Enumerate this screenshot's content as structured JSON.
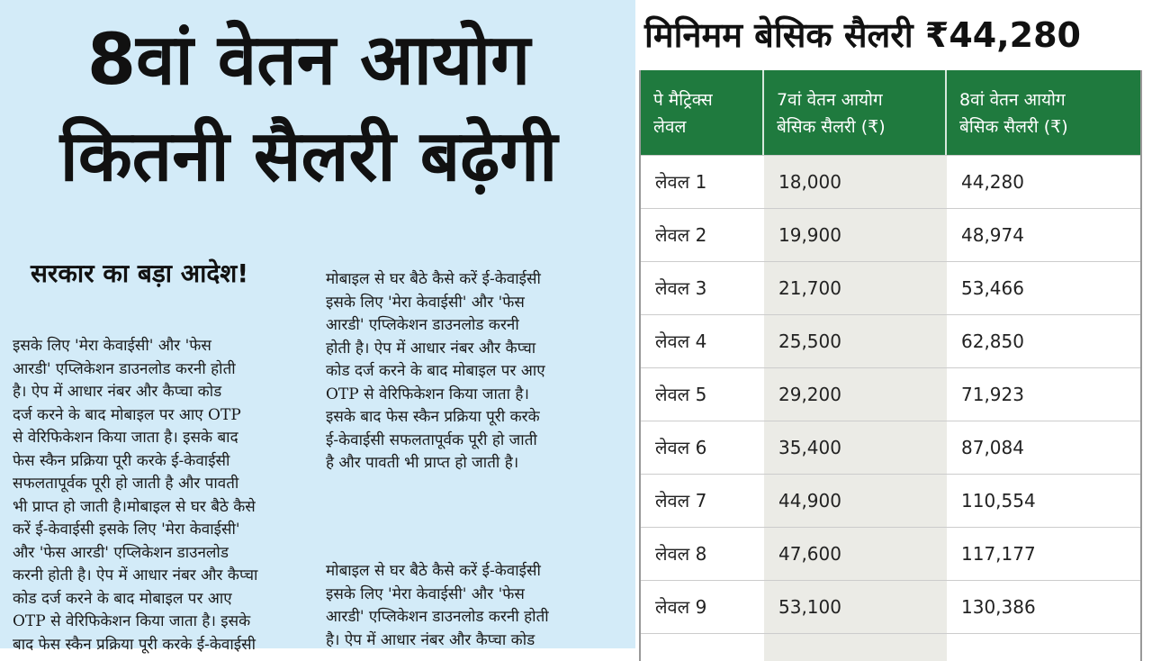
{
  "left": {
    "headline_line1": "8वां वेतन आयोग",
    "headline_line2": "कितनी सैलरी बढ़ेगी",
    "subheading": "सरकार का बड़ा आदेश!",
    "column1_lines": [
      "इसके लिए 'मेरा केवाईसी' और 'फेस",
      "आरडी' एप्लिकेशन डाउनलोड करनी होती",
      "है। ऐप में आधार नंबर और कैप्चा कोड",
      "दर्ज करने के बाद मोबाइल पर आए OTP",
      "से वेरिफिकेशन किया जाता है। इसके बाद",
      "फेस स्कैन प्रक्रिया पूरी करके ई-केवाईसी",
      "सफलतापूर्वक पूरी हो जाती है और पावती",
      "भी प्राप्त हो जाती है।मोबाइल से घर बैठे कैसे",
      "करें ई-केवाईसी इसके लिए 'मेरा केवाईसी'",
      "और 'फेस आरडी' एप्लिकेशन डाउनलोड",
      "करनी होती है। ऐप में आधार नंबर और कैप्चा",
      "कोड दर्ज करने के बाद मोबाइल पर आए",
      "OTP से वेरिफिकेशन किया जाता है। इसके",
      "बाद फेस स्कैन प्रक्रिया पूरी करके ई-केवाईसी"
    ],
    "column2_lines": [
      "मोबाइल से घर बैठे कैसे करें ई-केवाईसी",
      "इसके लिए 'मेरा केवाईसी' और 'फेस",
      "आरडी' एप्लिकेशन डाउनलोड करनी",
      "होती है। ऐप में आधार नंबर और कैप्चा",
      "कोड दर्ज करने के बाद मोबाइल पर आए",
      "OTP से वेरिफिकेशन किया जाता है।",
      "इसके बाद फेस स्कैन प्रक्रिया पूरी करके",
      "ई-केवाईसी सफलतापूर्वक पूरी हो जाती",
      "है और पावती भी प्राप्त हो जाती है।"
    ],
    "column3_lines": [
      "मोबाइल से घर बैठे कैसे करें ई-केवाईसी",
      "इसके लिए 'मेरा केवाईसी' और 'फेस",
      "आरडी' एप्लिकेशन डाउनलोड करनी होती",
      "है। ऐप में आधार नंबर और कैप्चा कोड"
    ]
  },
  "right": {
    "title": "मिनिमम बेसिक सैलरी ₹44,280",
    "table": {
      "header_color": "#1f7a3e",
      "headers": [
        [
          "पे मैट्रिक्स",
          "लेवल"
        ],
        [
          "7वां वेतन आयोग",
          "बेसिक सैलरी (₹)"
        ],
        [
          "8वां वेतन आयोग",
          "बेसिक सैलरी (₹)"
        ]
      ],
      "rows": [
        [
          "लेवल 1",
          "18,000",
          "44,280"
        ],
        [
          "लेवल 2",
          "19,900",
          "48,974"
        ],
        [
          "लेवल 3",
          "21,700",
          "53,466"
        ],
        [
          "लेवल 4",
          "25,500",
          "62,850"
        ],
        [
          "लेवल 5",
          "29,200",
          "71,923"
        ],
        [
          "लेवल 6",
          "35,400",
          "87,084"
        ],
        [
          "लेवल 7",
          "44,900",
          "110,554"
        ],
        [
          "लेवल 8",
          "47,600",
          "117,177"
        ],
        [
          "लेवल 9",
          "53,100",
          "130,386"
        ]
      ]
    }
  }
}
